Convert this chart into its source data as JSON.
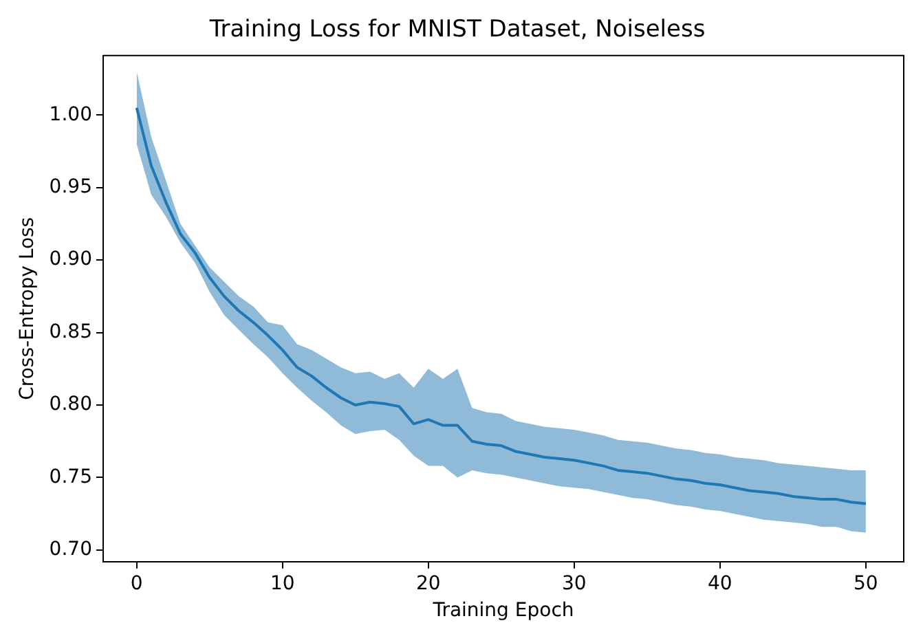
{
  "chart_data": {
    "type": "line",
    "title": "Training Loss for MNIST Dataset, Noiseless",
    "xlabel": "Training Epoch",
    "ylabel": "Cross-Entropy Loss",
    "x": [
      0,
      1,
      2,
      3,
      4,
      5,
      6,
      7,
      8,
      9,
      10,
      11,
      12,
      13,
      14,
      15,
      16,
      17,
      18,
      19,
      20,
      21,
      22,
      23,
      24,
      25,
      26,
      27,
      28,
      29,
      30,
      31,
      32,
      33,
      34,
      35,
      36,
      37,
      38,
      39,
      40,
      41,
      42,
      43,
      44,
      45,
      46,
      47,
      48,
      49,
      50
    ],
    "series": [
      {
        "color": "#1f77b4",
        "values": [
          1.005,
          0.965,
          0.94,
          0.918,
          0.905,
          0.888,
          0.875,
          0.865,
          0.857,
          0.848,
          0.838,
          0.826,
          0.82,
          0.812,
          0.805,
          0.8,
          0.802,
          0.801,
          0.799,
          0.787,
          0.79,
          0.786,
          0.786,
          0.775,
          0.773,
          0.772,
          0.768,
          0.766,
          0.764,
          0.763,
          0.762,
          0.76,
          0.758,
          0.755,
          0.754,
          0.753,
          0.751,
          0.749,
          0.748,
          0.746,
          0.745,
          0.743,
          0.741,
          0.74,
          0.739,
          0.737,
          0.736,
          0.735,
          0.735,
          0.733,
          0.732
        ],
        "upper": [
          1.03,
          0.985,
          0.955,
          0.925,
          0.91,
          0.895,
          0.885,
          0.875,
          0.868,
          0.857,
          0.855,
          0.842,
          0.838,
          0.832,
          0.826,
          0.822,
          0.823,
          0.818,
          0.822,
          0.812,
          0.825,
          0.818,
          0.825,
          0.798,
          0.795,
          0.794,
          0.789,
          0.787,
          0.785,
          0.784,
          0.783,
          0.781,
          0.779,
          0.776,
          0.775,
          0.774,
          0.772,
          0.77,
          0.769,
          0.767,
          0.766,
          0.764,
          0.763,
          0.762,
          0.76,
          0.759,
          0.758,
          0.757,
          0.756,
          0.755,
          0.755
        ],
        "lower": [
          0.98,
          0.945,
          0.93,
          0.912,
          0.898,
          0.878,
          0.862,
          0.852,
          0.842,
          0.833,
          0.822,
          0.812,
          0.803,
          0.795,
          0.786,
          0.78,
          0.782,
          0.783,
          0.776,
          0.765,
          0.758,
          0.758,
          0.75,
          0.755,
          0.753,
          0.752,
          0.75,
          0.748,
          0.746,
          0.744,
          0.743,
          0.742,
          0.74,
          0.738,
          0.736,
          0.735,
          0.733,
          0.731,
          0.73,
          0.728,
          0.727,
          0.725,
          0.723,
          0.721,
          0.72,
          0.719,
          0.718,
          0.716,
          0.716,
          0.713,
          0.712
        ]
      }
    ],
    "xlim": [
      -2.3,
      52.6
    ],
    "ylim": [
      0.692,
      1.041
    ],
    "xticks": [
      0,
      10,
      20,
      30,
      40,
      50
    ],
    "yticks": [
      {
        "value": 0.7,
        "label": "0.70"
      },
      {
        "value": 0.75,
        "label": "0.75"
      },
      {
        "value": 0.8,
        "label": "0.80"
      },
      {
        "value": 0.85,
        "label": "0.85"
      },
      {
        "value": 0.9,
        "label": "0.90"
      },
      {
        "value": 0.95,
        "label": "0.95"
      },
      {
        "value": 1,
        "label": "1.00"
      }
    ],
    "grid": false,
    "legend": false,
    "marker": "none",
    "line_style": "solid"
  }
}
